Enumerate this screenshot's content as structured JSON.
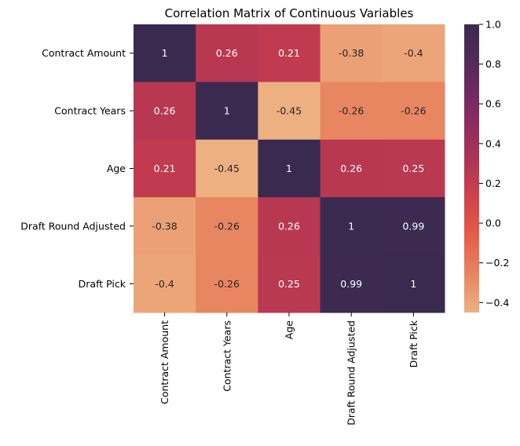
{
  "chart_data": {
    "type": "heatmap",
    "title": "Correlation Matrix of Continuous Variables",
    "xlabel": "",
    "ylabel": "",
    "rows": [
      "Contract Amount",
      "Contract Years",
      "Age",
      "Draft Round Adjusted",
      "Draft Pick"
    ],
    "columns": [
      "Contract Amount",
      "Contract Years",
      "Age",
      "Draft Round Adjusted",
      "Draft Pick"
    ],
    "values": [
      [
        1,
        0.26,
        0.21,
        -0.38,
        -0.4
      ],
      [
        0.26,
        1,
        -0.45,
        -0.26,
        -0.26
      ],
      [
        0.21,
        -0.45,
        1,
        0.26,
        0.25
      ],
      [
        -0.38,
        -0.26,
        0.26,
        1,
        0.99
      ],
      [
        -0.4,
        -0.26,
        0.25,
        0.99,
        1
      ]
    ],
    "annotations": [
      [
        "1",
        "0.26",
        "0.21",
        "-0.38",
        "-0.4"
      ],
      [
        "0.26",
        "1",
        "-0.45",
        "-0.26",
        "-0.26"
      ],
      [
        "0.21",
        "-0.45",
        "1",
        "0.26",
        "0.25"
      ],
      [
        "-0.38",
        "-0.26",
        "0.26",
        "1",
        "0.99"
      ],
      [
        "-0.4",
        "-0.26",
        "0.25",
        "0.99",
        "1"
      ]
    ],
    "colormap": "flare",
    "colormap_stops": [
      "#edb081",
      "#e8825f",
      "#e35849",
      "#c73e4c",
      "#a3305a",
      "#7e2a63",
      "#562a5b",
      "#3b2a4f"
    ],
    "value_range": [
      -0.45,
      1.0
    ],
    "colorbar": {
      "ticks": [
        1.0,
        0.8,
        0.6,
        0.4,
        0.2,
        0.0,
        -0.2,
        -0.4
      ],
      "tick_labels": [
        "1.0",
        "0.8",
        "0.6",
        "0.4",
        "0.2",
        "0.0",
        "−0.2",
        "−0.4"
      ],
      "placement": "right"
    }
  }
}
